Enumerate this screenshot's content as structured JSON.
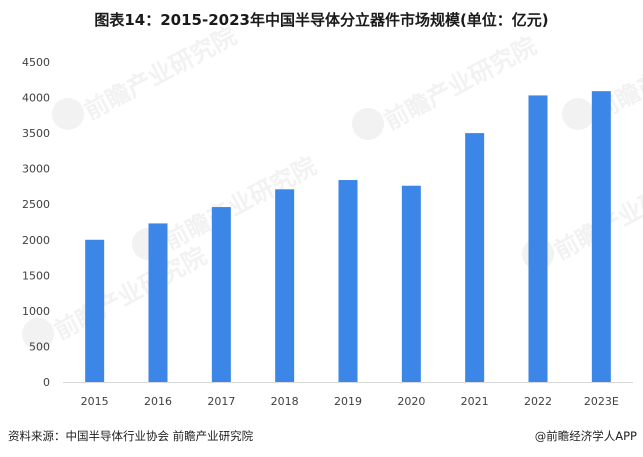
{
  "title": "图表14：2015-2023年中国半导体分立器件市场规模(单位：亿元)",
  "source": "资料来源：中国半导体行业协会 前瞻产业研究院",
  "credit": "@前瞻经济学人APP",
  "watermark": "前瞻产业研究院",
  "colors": {
    "bar": "#3b86e6",
    "axis": "#d9d9d9",
    "tick_text": "#404040"
  },
  "chart_data": {
    "type": "bar",
    "categories": [
      "2015",
      "2016",
      "2017",
      "2018",
      "2019",
      "2020",
      "2021",
      "2022",
      "2023E"
    ],
    "values": [
      2000,
      2230,
      2460,
      2710,
      2840,
      2760,
      3500,
      4030,
      4090
    ],
    "title": "图表14：2015-2023年中国半导体分立器件市场规模(单位：亿元)",
    "xlabel": "",
    "ylabel": "",
    "ylim": [
      0,
      4500
    ],
    "yticks": [
      0,
      500,
      1000,
      1500,
      2000,
      2500,
      3000,
      3500,
      4000,
      4500
    ],
    "grid": false,
    "legend": "none"
  }
}
